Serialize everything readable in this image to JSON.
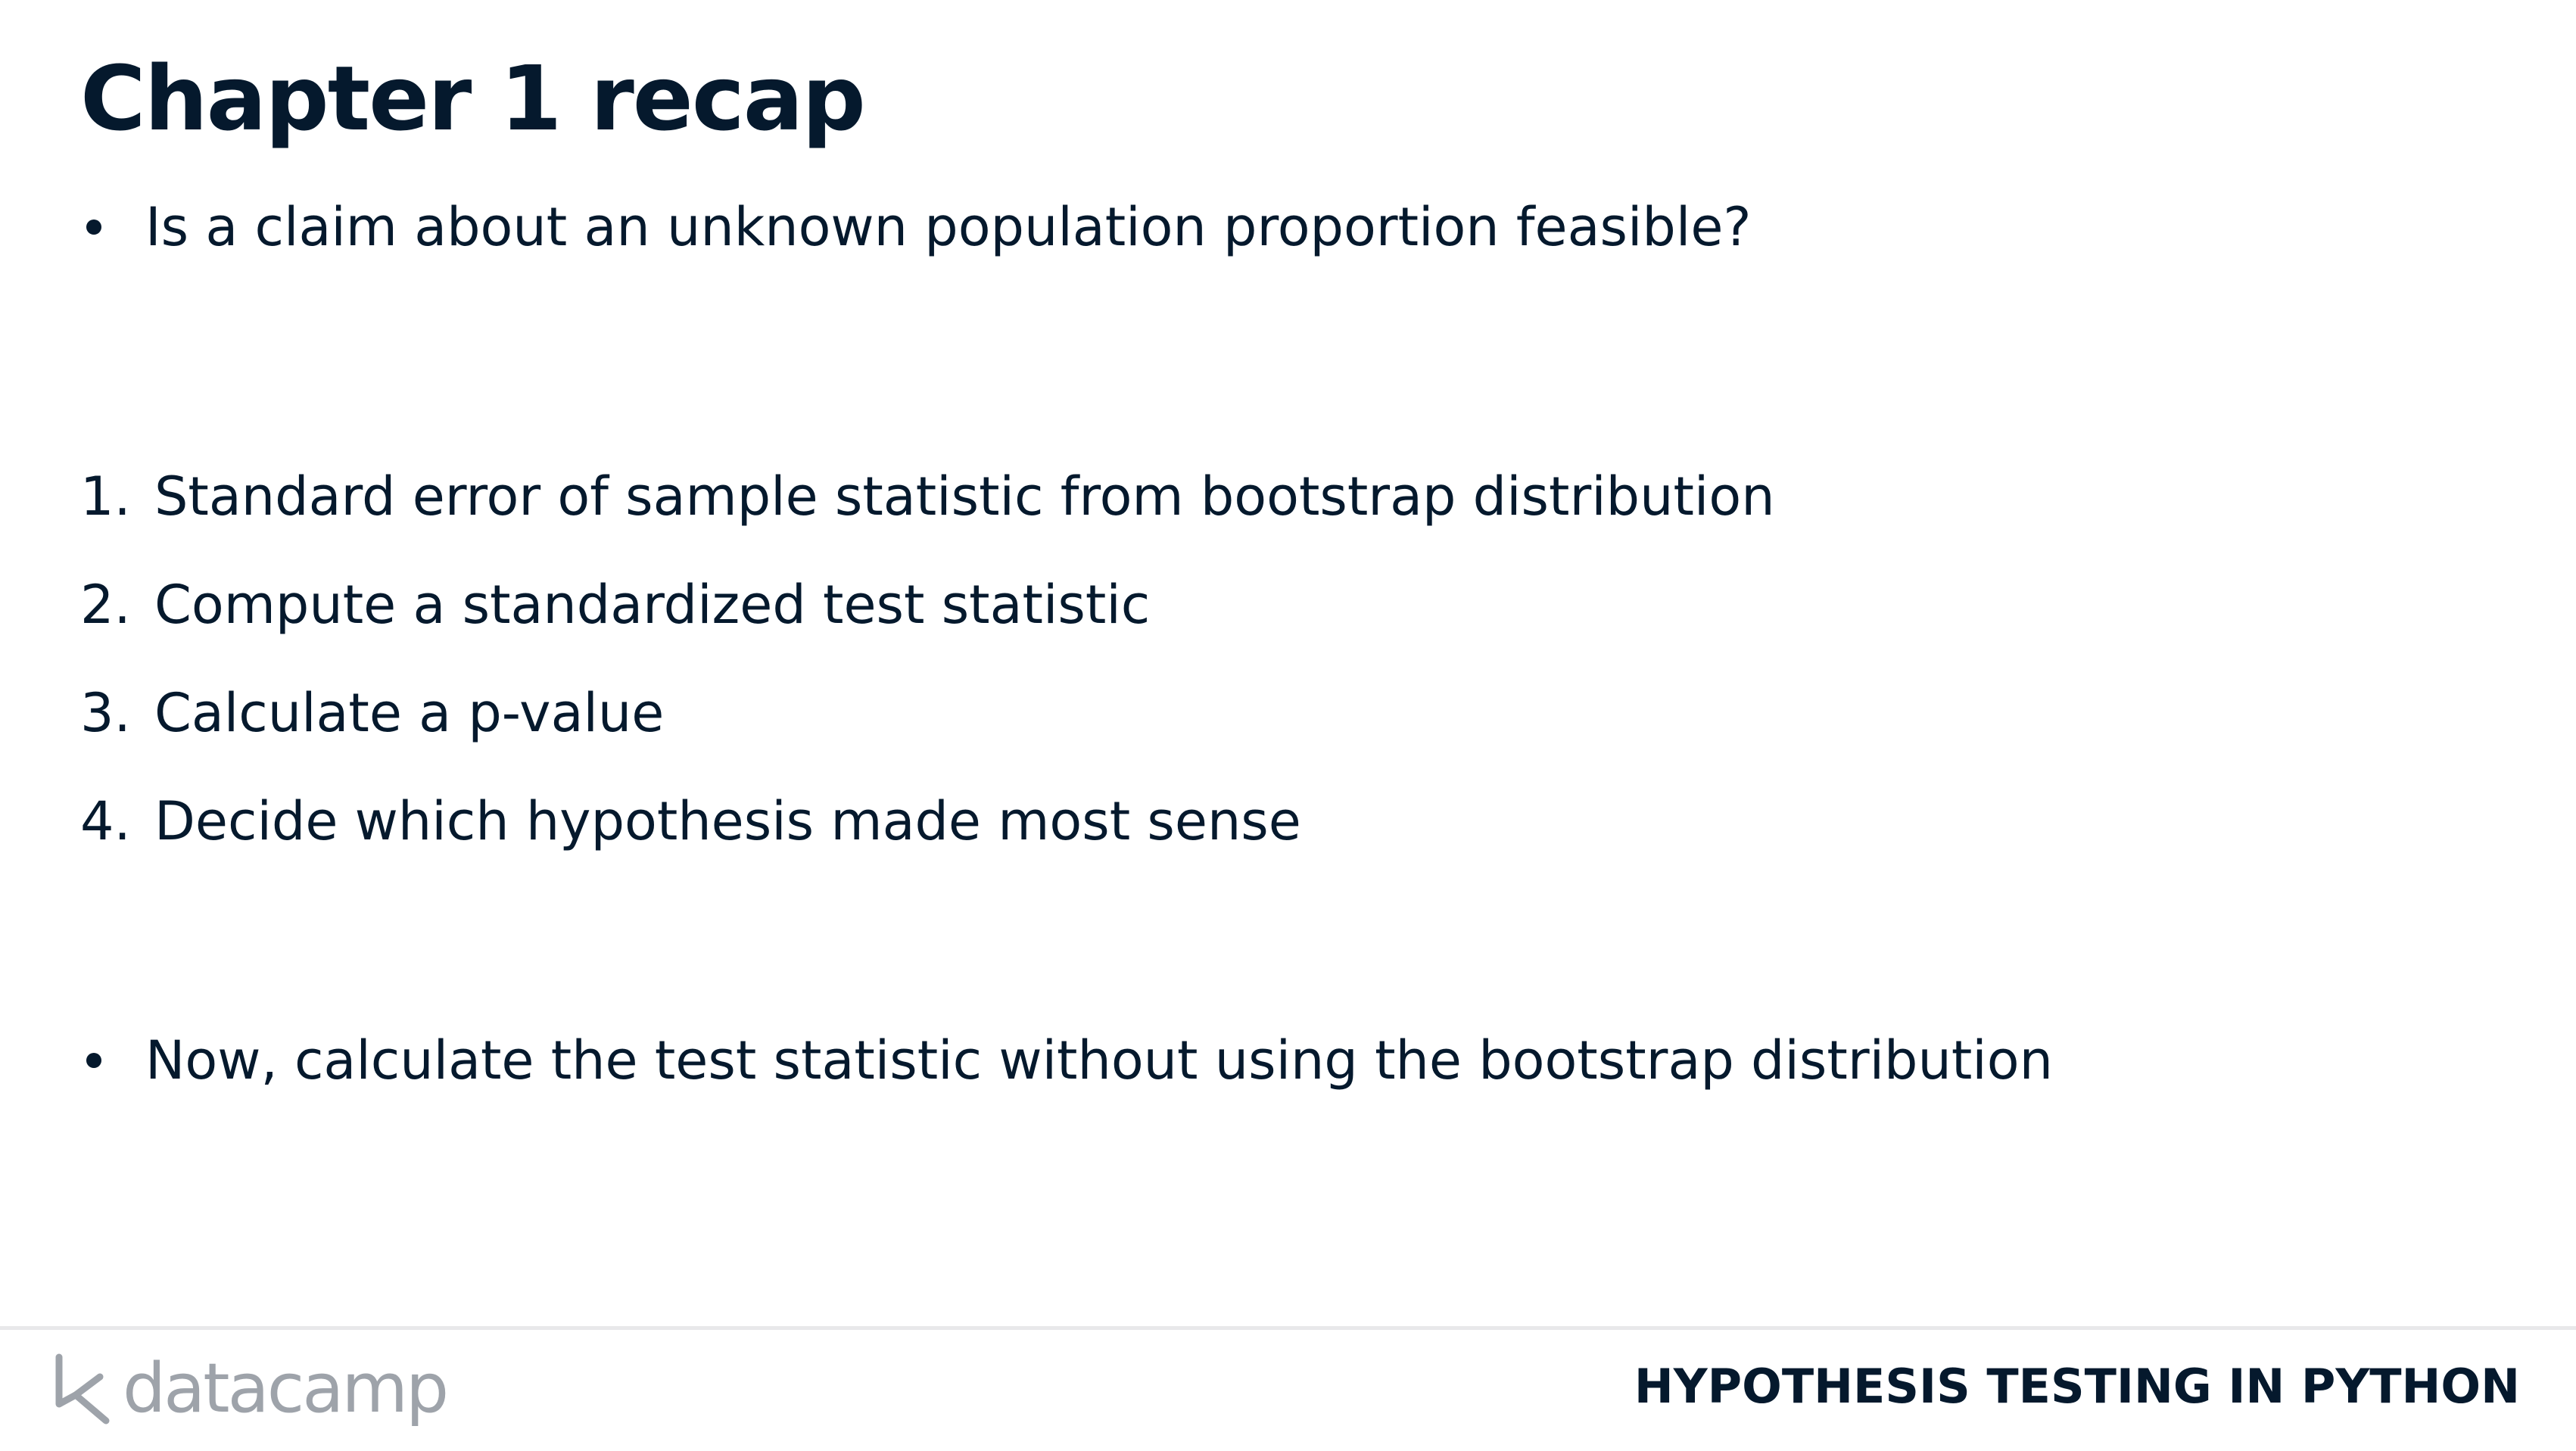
{
  "slide": {
    "title": "Chapter 1 recap",
    "bullets_top": [
      "Is a claim about an unknown population proportion feasible?"
    ],
    "steps": [
      {
        "num": "1.",
        "text": "Standard error of sample statistic from bootstrap distribution"
      },
      {
        "num": "2.",
        "text": "Compute a standardized test statistic"
      },
      {
        "num": "3.",
        "text": "Calculate a p-value"
      },
      {
        "num": "4.",
        "text": "Decide which hypothesis made most sense"
      }
    ],
    "bullets_bottom": [
      "Now, calculate the test statistic without using the bootstrap distribution"
    ]
  },
  "footer": {
    "logo_text": "datacamp",
    "course_title": "HYPOTHESIS TESTING IN PYTHON"
  },
  "colors": {
    "text": "#05192d",
    "logo": "#9ea3aa",
    "divider": "#e8e8ea",
    "background": "#ffffff"
  }
}
